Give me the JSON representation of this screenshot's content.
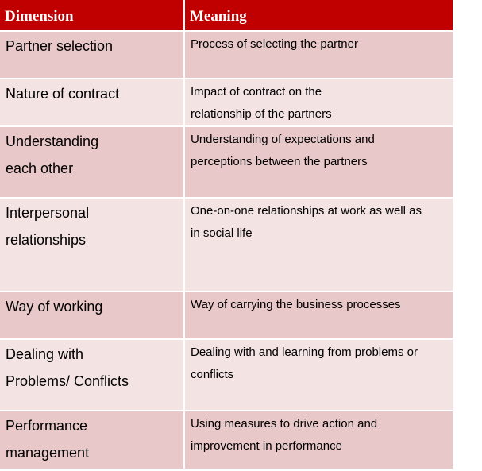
{
  "header": {
    "dimension": "Dimension",
    "meaning": "Meaning"
  },
  "rows": [
    {
      "dimension": [
        "Partner selection"
      ],
      "meaning": [
        "Process of selecting the partner"
      ]
    },
    {
      "dimension": [
        "Nature of contract"
      ],
      "meaning": [
        "Impact of contract on the",
        "relationship of the partners"
      ]
    },
    {
      "dimension": [
        "Understanding",
        "each other"
      ],
      "meaning": [
        "Understanding of expectations and",
        "perceptions between the partners"
      ]
    },
    {
      "dimension": [
        "Interpersonal",
        "relationships"
      ],
      "meaning": [
        "One-on-one relationships at work as well as",
        "in social life"
      ]
    },
    {
      "dimension": [
        "Way of working"
      ],
      "meaning": [
        "Way of carrying the business processes"
      ]
    },
    {
      "dimension": [
        "Dealing with",
        "Problems/ Conflicts"
      ],
      "meaning": [
        "Dealing with and learning from problems or",
        "conflicts"
      ]
    },
    {
      "dimension": [
        "Performance",
        "management"
      ],
      "meaning": [
        "Using measures to drive action and",
        "improvement in performance"
      ]
    }
  ],
  "colors": {
    "header_bg": "#c00000",
    "row_odd": "#e8c8c8",
    "row_even": "#f3e3e3"
  }
}
